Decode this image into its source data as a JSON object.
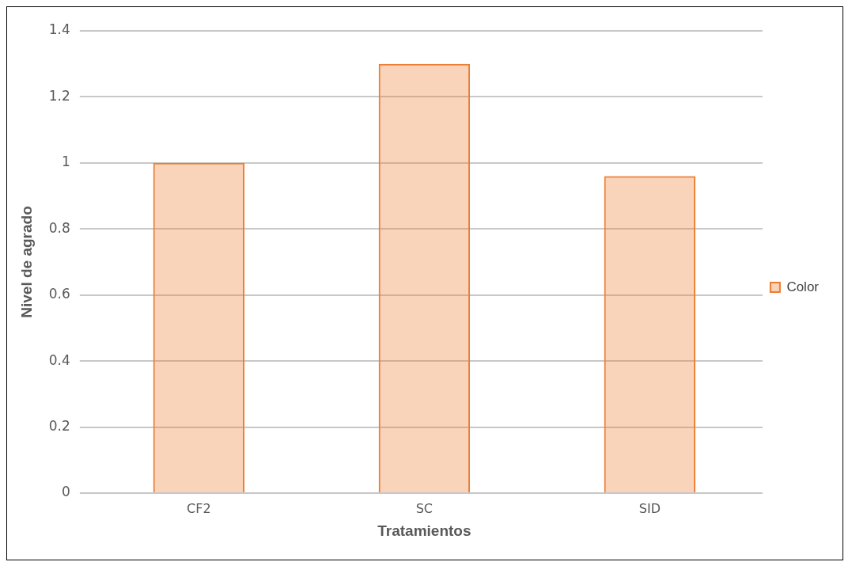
{
  "chart_data": {
    "type": "bar",
    "xlabel": "Tratamientos",
    "ylabel": "Nivel de agrado",
    "categories": [
      "CF2",
      "SC",
      "SID"
    ],
    "series": [
      {
        "name": "Color",
        "color": "#ed7d31",
        "values": [
          1.0,
          1.3,
          0.96
        ]
      }
    ],
    "ylim": [
      0,
      1.4
    ],
    "yticks": [
      0,
      0.2,
      0.4,
      0.6,
      0.8,
      1,
      1.2,
      1.4
    ],
    "grid": "y",
    "legend": "right"
  }
}
